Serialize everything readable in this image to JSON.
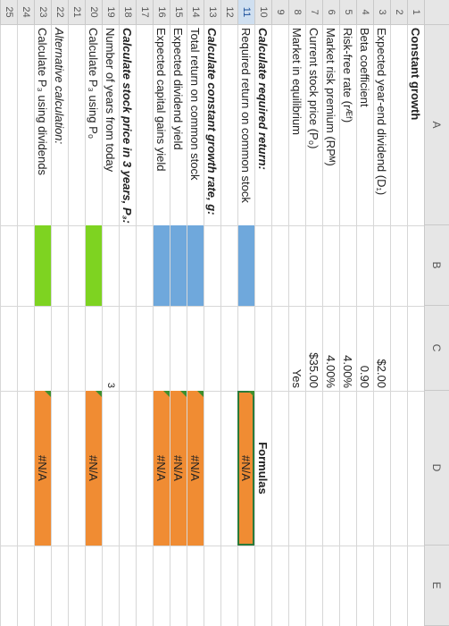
{
  "columns": [
    "A",
    "B",
    "C",
    "D",
    "E"
  ],
  "rows": [
    "1",
    "2",
    "3",
    "4",
    "5",
    "6",
    "7",
    "8",
    "9",
    "10",
    "11",
    "12",
    "13",
    "14",
    "15",
    "16",
    "17",
    "18",
    "19",
    "20",
    "21",
    "22",
    "23",
    "24",
    "25"
  ],
  "selected_row": "11",
  "labels": {
    "r1": "Constant growth",
    "r3": "Expected year-end dividend (D₁)",
    "r4": "Beta coefficient",
    "r5": "Risk-free rate (rᴭᶠ)",
    "r6": "Market risk premium (RPᴹ)",
    "r7": "Current stock price (P₀)",
    "r8": "Market in equilibrium",
    "r10": "Calculate required return:",
    "r11": "Required return on common stock",
    "r13": "Calculate constant growth rate, g:",
    "r14": "Total return on common stock",
    "r15": "Expected dividend yield",
    "r16": "Expected capital gains yield",
    "r18": "Calculate stock price in 3 years, P₃:",
    "r19": "Number of years from today",
    "r20": "Calculate P₃ using P₀",
    "r22": "Alternative calculation:",
    "r23": "Calculate P₃ using dividends"
  },
  "values": {
    "c3": "$2.00",
    "c4": "0.90",
    "c5": "4.00%",
    "c6": "4.00%",
    "c7": "$35.00",
    "c8": "Yes",
    "c19": "3"
  },
  "formulas_header": "Formulas",
  "results": {
    "d11": "#N/A",
    "d14": "#N/A",
    "d15": "#N/A",
    "d16": "#N/A",
    "d20": "#N/A",
    "d23": "#N/A"
  },
  "colors": {
    "input_fill": "#6fa8dc",
    "formula_fill": "#f08c33",
    "green_fill": "#7ed321",
    "selection": "#2a7a3a"
  }
}
